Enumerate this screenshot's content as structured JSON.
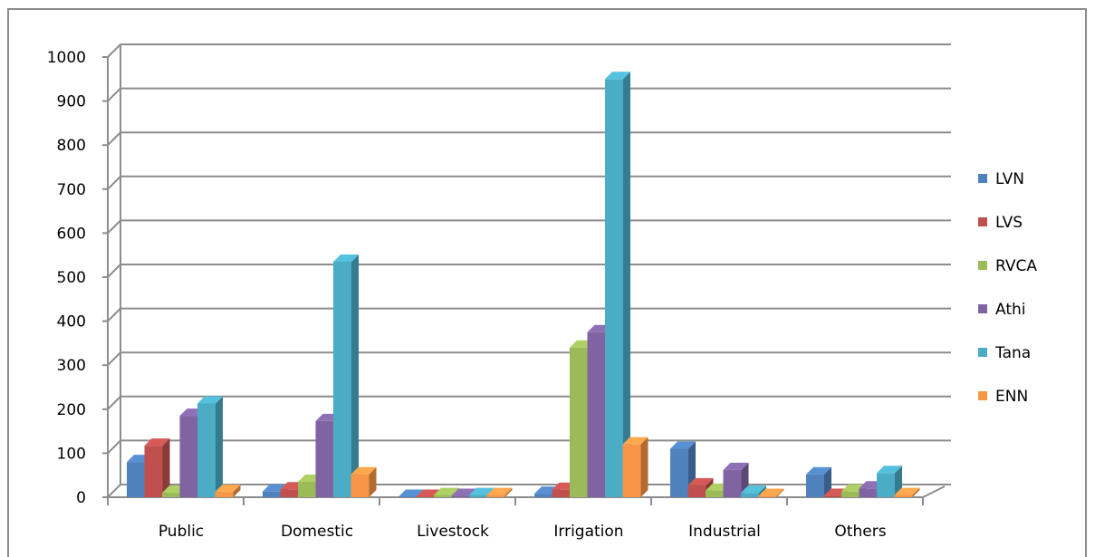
{
  "chart_data": {
    "type": "bar",
    "style": "3d-clustered-column",
    "categories": [
      "Public",
      "Domestic",
      "Livestock",
      "Irrigation",
      "Industrial",
      "Others"
    ],
    "series": [
      {
        "name": "LVN",
        "color": "#4f81bd",
        "values": [
          80,
          13,
          1,
          8,
          110,
          52
        ]
      },
      {
        "name": "LVS",
        "color": "#c0504d",
        "values": [
          117,
          18,
          1,
          17,
          27,
          3
        ]
      },
      {
        "name": "RVCA",
        "color": "#9bbb59",
        "values": [
          10,
          35,
          5,
          340,
          15,
          13
        ]
      },
      {
        "name": "Athi",
        "color": "#8064a2",
        "values": [
          185,
          173,
          3,
          375,
          62,
          20
        ]
      },
      {
        "name": "Tana",
        "color": "#4bacc6",
        "values": [
          213,
          535,
          5,
          950,
          10,
          55
        ]
      },
      {
        "name": "ENN",
        "color": "#f79646",
        "values": [
          12,
          52,
          5,
          120,
          3,
          5
        ]
      }
    ],
    "yticks": [
      0,
      100,
      200,
      300,
      400,
      500,
      600,
      700,
      800,
      900,
      1000
    ],
    "ylim": [
      0,
      1000
    ],
    "title": "",
    "xlabel": "",
    "ylabel": "",
    "grid": true,
    "legend_position": "right"
  }
}
